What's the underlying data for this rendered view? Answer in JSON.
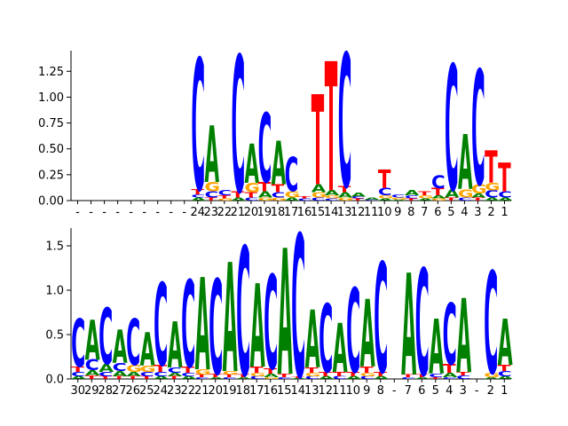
{
  "chart_data": [
    {
      "type": "sequence-logo",
      "title": "",
      "ylabel": "",
      "ylim": [
        0,
        1.45
      ],
      "yticks": [
        "0.00",
        "0.25",
        "0.50",
        "0.75",
        "1.00",
        "1.25"
      ],
      "ytick_values": [
        0,
        0.25,
        0.5,
        0.75,
        1.0,
        1.25
      ],
      "xtick_labels": [
        "-",
        "-",
        "-",
        "-",
        "-",
        "-",
        "-",
        "-",
        "-",
        "24",
        "23",
        "22",
        "21",
        "20",
        "19",
        "18",
        "17",
        "16",
        "15",
        "14",
        "13",
        "12",
        "11",
        "10",
        "9",
        "8",
        "7",
        "6",
        "5",
        "4",
        "3",
        "2",
        "1"
      ],
      "positions": [
        {
          "label": "-",
          "stack": []
        },
        {
          "label": "-",
          "stack": []
        },
        {
          "label": "-",
          "stack": []
        },
        {
          "label": "-",
          "stack": []
        },
        {
          "label": "-",
          "stack": []
        },
        {
          "label": "-",
          "stack": []
        },
        {
          "label": "-",
          "stack": []
        },
        {
          "label": "-",
          "stack": []
        },
        {
          "label": "-",
          "stack": []
        },
        {
          "label": "24",
          "stack": [
            [
              "A",
              0.03
            ],
            [
              "C",
              0.03
            ],
            [
              "T",
              0.05
            ],
            [
              "C",
              1.27
            ]
          ]
        },
        {
          "label": "23",
          "stack": [
            [
              "T",
              0.03
            ],
            [
              "C",
              0.06
            ],
            [
              "G",
              0.09
            ],
            [
              "A",
              0.55
            ]
          ]
        },
        {
          "label": "22",
          "stack": [
            [
              "G",
              0.02
            ],
            [
              "T",
              0.03
            ],
            [
              "C",
              0.05
            ]
          ]
        },
        {
          "label": "21",
          "stack": [
            [
              "A",
              0.03
            ],
            [
              "T",
              0.06
            ],
            [
              "C",
              1.32
            ]
          ]
        },
        {
          "label": "20",
          "stack": [
            [
              "C",
              0.03
            ],
            [
              "T",
              0.05
            ],
            [
              "G",
              0.09
            ],
            [
              "A",
              0.38
            ]
          ]
        },
        {
          "label": "19",
          "stack": [
            [
              "G",
              0.03
            ],
            [
              "A",
              0.06
            ],
            [
              "T",
              0.09
            ],
            [
              "C",
              0.67
            ]
          ]
        },
        {
          "label": "18",
          "stack": [
            [
              "G",
              0.03
            ],
            [
              "C",
              0.05
            ],
            [
              "T",
              0.08
            ],
            [
              "A",
              0.42
            ]
          ]
        },
        {
          "label": "17",
          "stack": [
            [
              "A",
              0.03
            ],
            [
              "G",
              0.06
            ],
            [
              "C",
              0.33
            ]
          ]
        },
        {
          "label": "16",
          "stack": [
            [
              "C",
              0.02
            ],
            [
              "T",
              0.02
            ]
          ]
        },
        {
          "label": "15",
          "stack": [
            [
              "C",
              0.03
            ],
            [
              "G",
              0.05
            ],
            [
              "A",
              0.08
            ],
            [
              "T",
              0.87
            ]
          ]
        },
        {
          "label": "14",
          "stack": [
            [
              "C",
              0.02
            ],
            [
              "G",
              0.03
            ],
            [
              "A",
              0.05
            ],
            [
              "T",
              1.25
            ]
          ]
        },
        {
          "label": "13",
          "stack": [
            [
              "G",
              0.03
            ],
            [
              "A",
              0.05
            ],
            [
              "T",
              0.06
            ],
            [
              "C",
              1.29
            ]
          ]
        },
        {
          "label": "12",
          "stack": [
            [
              "T",
              0.02
            ],
            [
              "C",
              0.02
            ],
            [
              "A",
              0.04
            ]
          ]
        },
        {
          "label": "11",
          "stack": [
            [
              "C",
              0.01
            ],
            [
              "A",
              0.02
            ]
          ]
        },
        {
          "label": "10",
          "stack": [
            [
              "A",
              0.02
            ],
            [
              "G",
              0.03
            ],
            [
              "C",
              0.07
            ],
            [
              "T",
              0.18
            ]
          ]
        },
        {
          "label": "9",
          "stack": [
            [
              "A",
              0.01
            ],
            [
              "G",
              0.02
            ],
            [
              "C",
              0.03
            ]
          ]
        },
        {
          "label": "8",
          "stack": [
            [
              "T",
              0.02
            ],
            [
              "C",
              0.03
            ],
            [
              "A",
              0.05
            ]
          ]
        },
        {
          "label": "7",
          "stack": [
            [
              "A",
              0.02
            ],
            [
              "G",
              0.03
            ],
            [
              "T",
              0.04
            ]
          ]
        },
        {
          "label": "6",
          "stack": [
            [
              "G",
              0.02
            ],
            [
              "A",
              0.03
            ],
            [
              "T",
              0.07
            ],
            [
              "C",
              0.12
            ]
          ]
        },
        {
          "label": "5",
          "stack": [
            [
              "T",
              0.03
            ],
            [
              "A",
              0.08
            ],
            [
              "C",
              1.21
            ]
          ]
        },
        {
          "label": "4",
          "stack": [
            [
              "C",
              0.03
            ],
            [
              "G",
              0.08
            ],
            [
              "A",
              0.53
            ]
          ]
        },
        {
          "label": "3",
          "stack": [
            [
              "T",
              0.03
            ],
            [
              "A",
              0.04
            ],
            [
              "G",
              0.09
            ],
            [
              "C",
              1.11
            ]
          ]
        },
        {
          "label": "2",
          "stack": [
            [
              "A",
              0.03
            ],
            [
              "C",
              0.07
            ],
            [
              "G",
              0.07
            ],
            [
              "T",
              0.31
            ]
          ]
        },
        {
          "label": "1",
          "stack": [
            [
              "A",
              0.03
            ],
            [
              "C",
              0.06
            ],
            [
              "T",
              0.28
            ]
          ]
        }
      ]
    },
    {
      "type": "sequence-logo",
      "title": "",
      "ylabel": "",
      "ylim": [
        0,
        1.7
      ],
      "yticks": [
        "0.0",
        "0.5",
        "1.0",
        "1.5"
      ],
      "ytick_values": [
        0,
        0.5,
        1.0,
        1.5
      ],
      "xtick_labels": [
        "30",
        "29",
        "28",
        "27",
        "26",
        "25",
        "24",
        "23",
        "22",
        "21",
        "20",
        "19",
        "18",
        "17",
        "16",
        "15",
        "14",
        "13",
        "12",
        "11",
        "10",
        "9",
        "8",
        "-",
        "7",
        "6",
        "5",
        "4",
        "3",
        "-",
        "2",
        "1"
      ],
      "positions": [
        {
          "label": "30",
          "stack": [
            [
              "A",
              0.03
            ],
            [
              "C",
              0.05
            ],
            [
              "T",
              0.06
            ],
            [
              "C",
              0.54
            ]
          ]
        },
        {
          "label": "29",
          "stack": [
            [
              "T",
              0.04
            ],
            [
              "A",
              0.06
            ],
            [
              "C",
              0.12
            ],
            [
              "A",
              0.45
            ]
          ]
        },
        {
          "label": "28",
          "stack": [
            [
              "T",
              0.03
            ],
            [
              "C",
              0.05
            ],
            [
              "A",
              0.09
            ],
            [
              "C",
              0.63
            ]
          ]
        },
        {
          "label": "27",
          "stack": [
            [
              "T",
              0.03
            ],
            [
              "A",
              0.06
            ],
            [
              "C",
              0.09
            ],
            [
              "A",
              0.38
            ]
          ]
        },
        {
          "label": "26",
          "stack": [
            [
              "T",
              0.03
            ],
            [
              "A",
              0.05
            ],
            [
              "G",
              0.08
            ],
            [
              "C",
              0.52
            ]
          ]
        },
        {
          "label": "25",
          "stack": [
            [
              "T",
              0.03
            ],
            [
              "C",
              0.05
            ],
            [
              "G",
              0.07
            ],
            [
              "A",
              0.38
            ]
          ]
        },
        {
          "label": "24",
          "stack": [
            [
              "A",
              0.03
            ],
            [
              "C",
              0.05
            ],
            [
              "T",
              0.08
            ],
            [
              "C",
              0.93
            ]
          ]
        },
        {
          "label": "23",
          "stack": [
            [
              "T",
              0.03
            ],
            [
              "A",
              0.04
            ],
            [
              "C",
              0.06
            ],
            [
              "A",
              0.52
            ]
          ]
        },
        {
          "label": "22",
          "stack": [
            [
              "A",
              0.03
            ],
            [
              "C",
              0.04
            ],
            [
              "T",
              0.07
            ],
            [
              "C",
              0.98
            ]
          ]
        },
        {
          "label": "21",
          "stack": [
            [
              "C",
              0.02
            ],
            [
              "T",
              0.03
            ],
            [
              "G",
              0.06
            ],
            [
              "A",
              1.04
            ]
          ]
        },
        {
          "label": "20",
          "stack": [
            [
              "A",
              0.02
            ],
            [
              "T",
              0.04
            ],
            [
              "C",
              1.07
            ]
          ]
        },
        {
          "label": "19",
          "stack": [
            [
              "C",
              0.02
            ],
            [
              "T",
              0.03
            ],
            [
              "G",
              0.04
            ],
            [
              "A",
              1.23
            ]
          ]
        },
        {
          "label": "18",
          "stack": [
            [
              "A",
              0.02
            ],
            [
              "T",
              0.03
            ],
            [
              "C",
              1.45
            ]
          ]
        },
        {
          "label": "17",
          "stack": [
            [
              "C",
              0.03
            ],
            [
              "G",
              0.04
            ],
            [
              "T",
              0.07
            ],
            [
              "A",
              0.94
            ]
          ]
        },
        {
          "label": "16",
          "stack": [
            [
              "G",
              0.02
            ],
            [
              "A",
              0.04
            ],
            [
              "T",
              0.06
            ],
            [
              "C",
              1.06
            ]
          ]
        },
        {
          "label": "15",
          "stack": [
            [
              "C",
              0.02
            ],
            [
              "T",
              0.04
            ],
            [
              "A",
              1.42
            ]
          ]
        },
        {
          "label": "14",
          "stack": [
            [
              "A",
              0.01
            ],
            [
              "T",
              0.02
            ],
            [
              "C",
              1.61
            ]
          ]
        },
        {
          "label": "13",
          "stack": [
            [
              "C",
              0.03
            ],
            [
              "G",
              0.04
            ],
            [
              "T",
              0.06
            ],
            [
              "A",
              0.65
            ]
          ]
        },
        {
          "label": "12",
          "stack": [
            [
              "A",
              0.03
            ],
            [
              "T",
              0.05
            ],
            [
              "C",
              0.77
            ]
          ]
        },
        {
          "label": "11",
          "stack": [
            [
              "C",
              0.03
            ],
            [
              "T",
              0.05
            ],
            [
              "A",
              0.55
            ]
          ]
        },
        {
          "label": "10",
          "stack": [
            [
              "A",
              0.03
            ],
            [
              "T",
              0.05
            ],
            [
              "C",
              0.95
            ]
          ]
        },
        {
          "label": "9",
          "stack": [
            [
              "C",
              0.03
            ],
            [
              "G",
              0.04
            ],
            [
              "T",
              0.07
            ],
            [
              "A",
              0.76
            ]
          ]
        },
        {
          "label": "8",
          "stack": [
            [
              "A",
              0.03
            ],
            [
              "T",
              0.05
            ],
            [
              "C",
              1.24
            ]
          ]
        },
        {
          "label": "-",
          "stack": []
        },
        {
          "label": "7",
          "stack": [
            [
              "C",
              0.02
            ],
            [
              "T",
              0.03
            ],
            [
              "A",
              1.15
            ]
          ]
        },
        {
          "label": "6",
          "stack": [
            [
              "A",
              0.02
            ],
            [
              "T",
              0.03
            ],
            [
              "C",
              1.2
            ]
          ]
        },
        {
          "label": "5",
          "stack": [
            [
              "T",
              0.02
            ],
            [
              "C",
              0.04
            ],
            [
              "A",
              0.62
            ]
          ]
        },
        {
          "label": "4",
          "stack": [
            [
              "C",
              0.02
            ],
            [
              "A",
              0.05
            ],
            [
              "T",
              0.1
            ],
            [
              "C",
              0.69
            ]
          ]
        },
        {
          "label": "3",
          "stack": [
            [
              "C",
              0.04
            ],
            [
              "T",
              0.04
            ],
            [
              "A",
              0.83
            ]
          ]
        },
        {
          "label": "-",
          "stack": []
        },
        {
          "label": "2",
          "stack": [
            [
              "A",
              0.02
            ],
            [
              "G",
              0.05
            ],
            [
              "C",
              1.15
            ]
          ]
        },
        {
          "label": "1",
          "stack": [
            [
              "A",
              0.03
            ],
            [
              "C",
              0.06
            ],
            [
              "T",
              0.07
            ],
            [
              "A",
              0.52
            ]
          ]
        }
      ]
    }
  ],
  "colors": {
    "A": "#008000",
    "C": "#0000ff",
    "G": "#ffa500",
    "T": "#ff0000",
    "axis": "#000000",
    "text": "#000000"
  }
}
